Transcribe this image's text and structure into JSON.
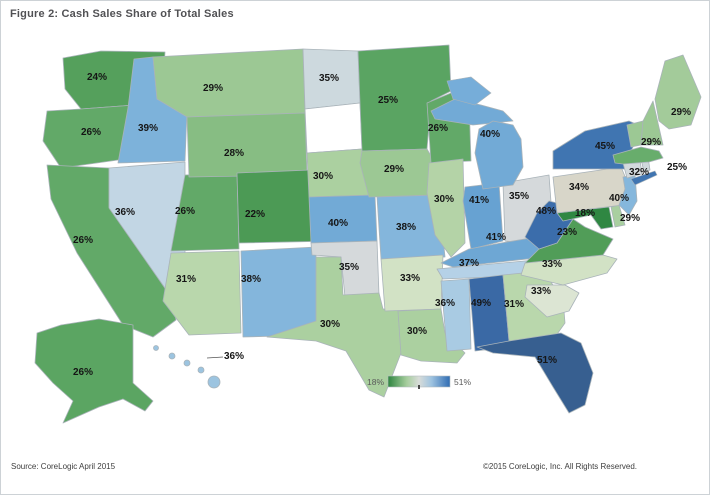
{
  "title": "Figure 2: Cash Sales Share of Total Sales",
  "footer": {
    "source_note": "Source: CoreLogic April 2015",
    "copyright": "©2015 CoreLogic, Inc. All Rights Reserved."
  },
  "legend": {
    "min_label": "18%",
    "max_label": "51%",
    "gradient": [
      "#2e8540",
      "#a5cd9c",
      "#d8dcd9",
      "#9ec3e0",
      "#2f6cb3"
    ],
    "tick_color": "#4a4a4a"
  },
  "water_color": "#76add9",
  "chart_data": {
    "type": "choropleth",
    "title": "Cash Sales Share of Total Sales",
    "unit": "%",
    "range": [
      18,
      51
    ],
    "legend_position": "bottom-center",
    "states": [
      {
        "abbr": "WA",
        "name": "Washington",
        "value": 24,
        "label": "24%",
        "fill": "#55a05c"
      },
      {
        "abbr": "OR",
        "name": "Oregon",
        "value": 26,
        "label": "26%",
        "fill": "#62a968"
      },
      {
        "abbr": "CA",
        "name": "California",
        "value": 26,
        "label": "26%",
        "fill": "#62a968"
      },
      {
        "abbr": "ID",
        "name": "Idaho",
        "value": 39,
        "label": "39%",
        "fill": "#7db2da"
      },
      {
        "abbr": "NV",
        "name": "Nevada",
        "value": 36,
        "label": "36%",
        "fill": "#c2d6e4"
      },
      {
        "abbr": "UT",
        "name": "Utah",
        "value": 26,
        "label": "26%",
        "fill": "#62a968"
      },
      {
        "abbr": "MT",
        "name": "Montana",
        "value": 29,
        "label": "29%",
        "fill": "#9cc894"
      },
      {
        "abbr": "WY",
        "name": "Wyoming",
        "value": 28,
        "label": "28%",
        "fill": "#87bd83"
      },
      {
        "abbr": "CO",
        "name": "Colorado",
        "value": 22,
        "label": "22%",
        "fill": "#4c9a55"
      },
      {
        "abbr": "AZ",
        "name": "Arizona",
        "value": 31,
        "label": "31%",
        "fill": "#b9d7ac"
      },
      {
        "abbr": "NM",
        "name": "New Mexico",
        "value": 38,
        "label": "38%",
        "fill": "#84b6dc"
      },
      {
        "abbr": "ND",
        "name": "North Dakota",
        "value": 35,
        "label": "35%",
        "fill": "#cdd9de"
      },
      {
        "abbr": "SD",
        "name": "South Dakota",
        "value": null,
        "label": "",
        "fill": "#ffffff"
      },
      {
        "abbr": "NE",
        "name": "Nebraska",
        "value": 30,
        "label": "30%",
        "fill": "#abd0a0"
      },
      {
        "abbr": "KS",
        "name": "Kansas",
        "value": 40,
        "label": "40%",
        "fill": "#72aad6"
      },
      {
        "abbr": "OK",
        "name": "Oklahoma",
        "value": 35,
        "label": "35%",
        "fill": "#d5d9db"
      },
      {
        "abbr": "TX",
        "name": "Texas",
        "value": 30,
        "label": "30%",
        "fill": "#abd0a0"
      },
      {
        "abbr": "MN",
        "name": "Minnesota",
        "value": 25,
        "label": "25%",
        "fill": "#5aa462"
      },
      {
        "abbr": "IA",
        "name": "Iowa",
        "value": 29,
        "label": "29%",
        "fill": "#9cc894"
      },
      {
        "abbr": "MO",
        "name": "Missouri",
        "value": 38,
        "label": "38%",
        "fill": "#84b6dc"
      },
      {
        "abbr": "AR",
        "name": "Arkansas",
        "value": 33,
        "label": "33%",
        "fill": "#d2e2c5"
      },
      {
        "abbr": "LA",
        "name": "Louisiana",
        "value": 30,
        "label": "30%",
        "fill": "#abd0a0"
      },
      {
        "abbr": "WI",
        "name": "Wisconsin",
        "value": 26,
        "label": "26%",
        "fill": "#62a968"
      },
      {
        "abbr": "IL",
        "name": "Illinois",
        "value": 30,
        "label": "30%",
        "fill": "#b4d3a7"
      },
      {
        "abbr": "IN",
        "name": "Indiana",
        "value": 41,
        "label": "41%",
        "fill": "#67a2d2"
      },
      {
        "abbr": "OH",
        "name": "Ohio",
        "value": 35,
        "label": "35%",
        "fill": "#d5d9db"
      },
      {
        "abbr": "MI",
        "name": "Michigan",
        "value": 40,
        "label": "40%",
        "fill": "#72aad6"
      },
      {
        "abbr": "KY",
        "name": "Kentucky",
        "value": 41,
        "label": "41%",
        "fill": "#6ea7d4"
      },
      {
        "abbr": "TN",
        "name": "Tennessee",
        "value": 37,
        "label": "37%",
        "fill": "#b5d1e7"
      },
      {
        "abbr": "MS",
        "name": "Mississippi",
        "value": 36,
        "label": "36%",
        "fill": "#a9cbe3"
      },
      {
        "abbr": "AL",
        "name": "Alabama",
        "value": 49,
        "label": "49%",
        "fill": "#3a69a5"
      },
      {
        "abbr": "GA",
        "name": "Georgia",
        "value": 31,
        "label": "31%",
        "fill": "#b9d7ac"
      },
      {
        "abbr": "FL",
        "name": "Florida",
        "value": 51,
        "label": "51%",
        "fill": "#375f90"
      },
      {
        "abbr": "SC",
        "name": "South Carolina",
        "value": 33,
        "label": "33%",
        "fill": "#dce5d3"
      },
      {
        "abbr": "NC",
        "name": "North Carolina",
        "value": 33,
        "label": "33%",
        "fill": "#d2e2c5"
      },
      {
        "abbr": "VA",
        "name": "Virginia",
        "value": 23,
        "label": "23%",
        "fill": "#519d58"
      },
      {
        "abbr": "WV",
        "name": "West Virginia",
        "value": 48,
        "label": "48%",
        "fill": "#3b6dab"
      },
      {
        "abbr": "MD",
        "name": "Maryland",
        "value": 18,
        "label": "18%",
        "fill": "#2f8742"
      },
      {
        "abbr": "DE",
        "name": "Delaware",
        "value": 29,
        "label": "29%",
        "fill": "#a9cfa0"
      },
      {
        "abbr": "PA",
        "name": "Pennsylvania",
        "value": 34,
        "label": "34%",
        "fill": "#d8d6c9"
      },
      {
        "abbr": "NY",
        "name": "New York",
        "value": 45,
        "label": "45%",
        "fill": "#4075b1"
      },
      {
        "abbr": "NJ",
        "name": "New Jersey",
        "value": 40,
        "label": "40%",
        "fill": "#85b7dc"
      },
      {
        "abbr": "CT",
        "name": "Connecticut",
        "value": null,
        "label": "",
        "fill": "#d3dadd"
      },
      {
        "abbr": "RI",
        "name": "Rhode Island",
        "value": 25,
        "label": "25%",
        "fill": "#cfd8db"
      },
      {
        "abbr": "MA",
        "name": "Massachusetts",
        "value": 32,
        "label": "32%",
        "fill": "#68ad6c"
      },
      {
        "abbr": "VT",
        "name": "Vermont",
        "value": null,
        "label": "",
        "fill": "#9cc894"
      },
      {
        "abbr": "NH",
        "name": "New Hampshire",
        "value": 29,
        "label": "29%",
        "fill": "#9cc894"
      },
      {
        "abbr": "ME",
        "name": "Maine",
        "value": 29,
        "label": "29%",
        "fill": "#a3cb9a"
      },
      {
        "abbr": "AK",
        "name": "Alaska",
        "value": 26,
        "label": "26%",
        "fill": "#5ba562"
      },
      {
        "abbr": "HI",
        "name": "Hawaii",
        "value": 36,
        "label": "36%",
        "fill": "#9cc4e0"
      }
    ]
  }
}
